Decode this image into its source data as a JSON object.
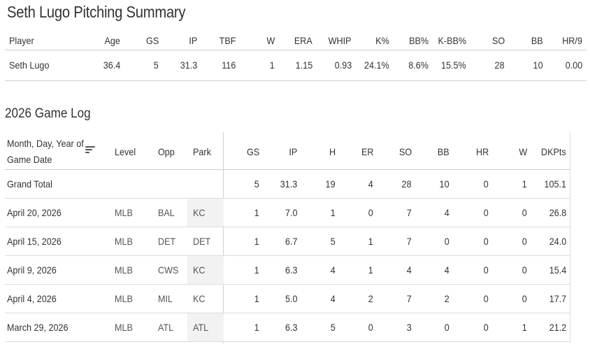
{
  "page_title": "Seth Lugo Pitching Summary",
  "summary": {
    "headers": [
      "Player",
      "Age",
      "GS",
      "IP",
      "TBF",
      "W",
      "ERA",
      "WHIP",
      "K%",
      "BB%",
      "K-BB%",
      "SO",
      "BB",
      "HR/9"
    ],
    "row": [
      "Seth Lugo",
      "36.4",
      "5",
      "31.3",
      "116",
      "1",
      "1.15",
      "0.93",
      "24.1%",
      "8.6%",
      "15.5%",
      "28",
      "10",
      "0.00"
    ]
  },
  "game_log": {
    "title": "2026 Game Log",
    "date_header_line1": "Month, Day, Year of",
    "date_header_line2": "Game Date",
    "headers": [
      "Level",
      "Opp",
      "Park",
      "GS",
      "IP",
      "H",
      "ER",
      "SO",
      "BB",
      "HR",
      "W",
      "DKPts"
    ],
    "total": {
      "label": "Grand Total",
      "values": [
        "5",
        "31.3",
        "19",
        "4",
        "28",
        "10",
        "0",
        "1",
        "105.1"
      ]
    },
    "rows": [
      {
        "date": "April 20, 2026",
        "level": "MLB",
        "opp": "BAL",
        "park": "KC",
        "values": [
          "1",
          "7.0",
          "1",
          "0",
          "7",
          "4",
          "0",
          "0",
          "26.8"
        ]
      },
      {
        "date": "April 15, 2026",
        "level": "MLB",
        "opp": "DET",
        "park": "DET",
        "values": [
          "1",
          "6.7",
          "5",
          "1",
          "7",
          "0",
          "0",
          "0",
          "24.0"
        ]
      },
      {
        "date": "April 9, 2026",
        "level": "MLB",
        "opp": "CWS",
        "park": "KC",
        "values": [
          "1",
          "6.3",
          "4",
          "1",
          "4",
          "4",
          "0",
          "0",
          "15.4"
        ]
      },
      {
        "date": "April 4, 2026",
        "level": "MLB",
        "opp": "MIL",
        "park": "KC",
        "values": [
          "1",
          "5.0",
          "4",
          "2",
          "7",
          "2",
          "0",
          "0",
          "17.7"
        ]
      },
      {
        "date": "March 29, 2026",
        "level": "MLB",
        "opp": "ATL",
        "park": "ATL",
        "values": [
          "1",
          "6.3",
          "5",
          "0",
          "3",
          "0",
          "0",
          "1",
          "21.2"
        ]
      }
    ],
    "sort_icon": "sort-icon"
  }
}
